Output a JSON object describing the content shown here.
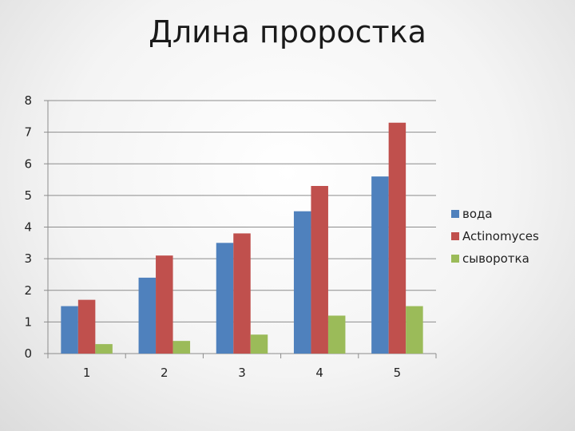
{
  "chart_data": {
    "type": "bar",
    "title": "Длина проростка",
    "xlabel": "",
    "ylabel": "",
    "categories": [
      "1",
      "2",
      "3",
      "4",
      "5"
    ],
    "series": [
      {
        "name": "вода",
        "color": "#4f81bd",
        "values": [
          1.5,
          2.4,
          3.5,
          4.5,
          5.6
        ]
      },
      {
        "name": "Actinomyces",
        "color": "#c0504d",
        "values": [
          1.7,
          3.1,
          3.8,
          5.3,
          7.3
        ]
      },
      {
        "name": "сыворотка",
        "color": "#9bbb59",
        "values": [
          0.3,
          0.4,
          0.6,
          1.2,
          1.5
        ]
      }
    ],
    "ylim": [
      0,
      8
    ],
    "yticks": [
      "0",
      "1",
      "2",
      "3",
      "4",
      "5",
      "6",
      "7",
      "8"
    ],
    "grid": true,
    "legend": "right"
  }
}
